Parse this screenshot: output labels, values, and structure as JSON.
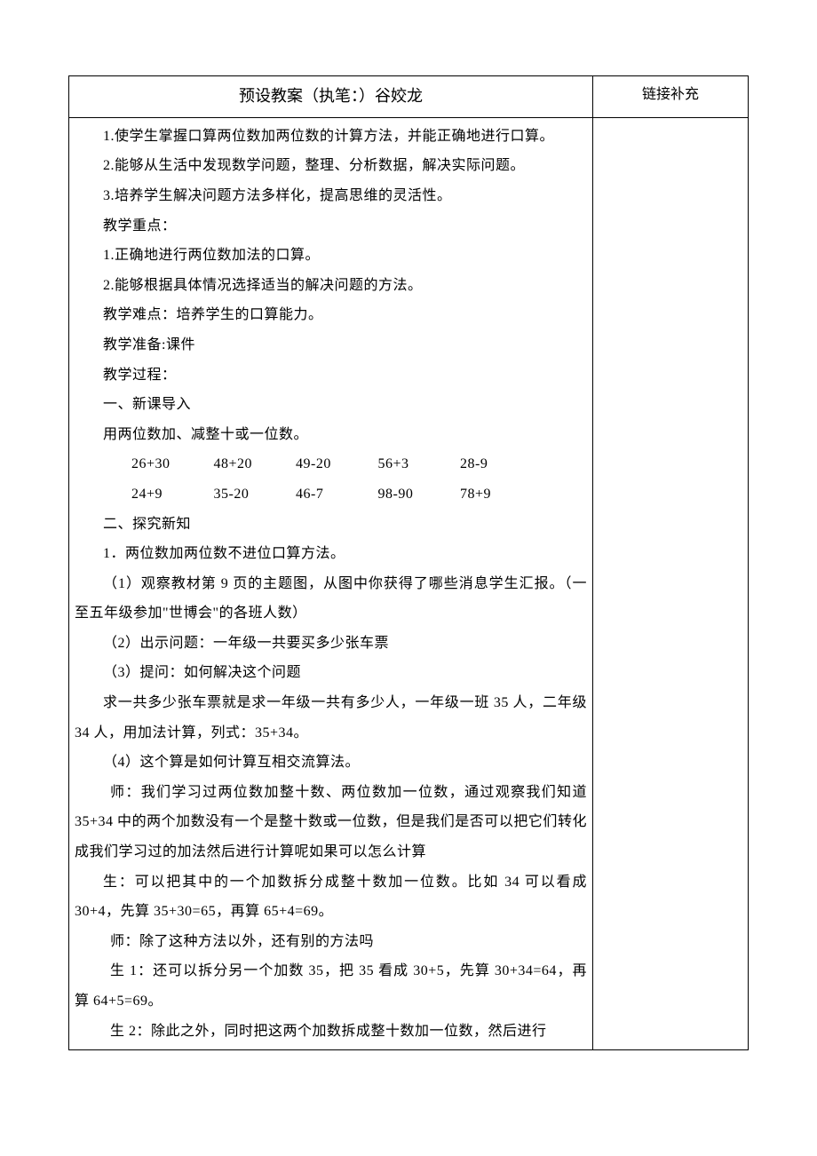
{
  "header": {
    "main": "预设教案（执笔：）谷姣龙",
    "side": "链接补充"
  },
  "body": {
    "p1": "1.使学生掌握口算两位数加两位数的计算方法，并能正确地进行口算。",
    "p2": "2.能够从生活中发现数学问题，整理、分析数据，解决实际问题。",
    "p3": "3.培养学生解决问题方法多样化，提高思维的灵活性。",
    "p4": "教学重点：",
    "p5": "1.正确地进行两位数加法的口算。",
    "p6": "2.能够根据具体情况选择适当的解决问题的方法。",
    "p7": "教学难点：培养学生的口算能力。",
    "p8": "教学准备:课件",
    "p9": "教学过程：",
    "p10": " 一、新课导入",
    "p11": "用两位数加、减整十或一位数。",
    "row1": {
      "a": "26+30",
      "b": "48+20",
      "c": "49-20",
      "d": "56+3",
      "e": "28-9"
    },
    "row2": {
      "a": "24+9",
      "b": "35-20",
      "c": "46-7",
      "d": "98-90",
      "e": "78+9"
    },
    "p12": "二、探究新知",
    "p13": "1．两位数加两位数不进位口算方法。",
    "p14": "（1）观察教材第 9 页的主题图，从图中你获得了哪些消息学生汇报。（一至五年级参加\"世博会\"的各班人数）",
    "p15": "（2）出示问题：一年级一共要买多少张车票",
    "p16": "（3）提问：如何解决这个问题",
    "p17": "求一共多少张车票就是求一年级一共有多少人，一年级一班 35 人，二年级 34 人，用加法计算，列式：35+34。",
    "p18": "（4）这个算是如何计算互相交流算法。",
    "p19": " 师：我们学习过两位数加整十数、两位数加一位数，通过观察我们知道 35+34 中的两个加数没有一个是整十数或一位数，但是我们是否可以把它们转化成我们学习过的加法然后进行计算呢如果可以怎么计算",
    "p20": "生：可以把其中的一个加数拆分成整十数加一位数。比如 34 可以看成 30+4，先算 35+30=65，再算 65+4=69。",
    "p21": " 师：除了这种方法以外，还有别的方法吗",
    "p22": " 生 1：还可以拆分另一个加数 35，把 35 看成 30+5，先算 30+34=64，再算 64+5=69。",
    "p23": " 生 2：除此之外，同时把这两个加数拆成整十数加一位数，然后进行"
  }
}
